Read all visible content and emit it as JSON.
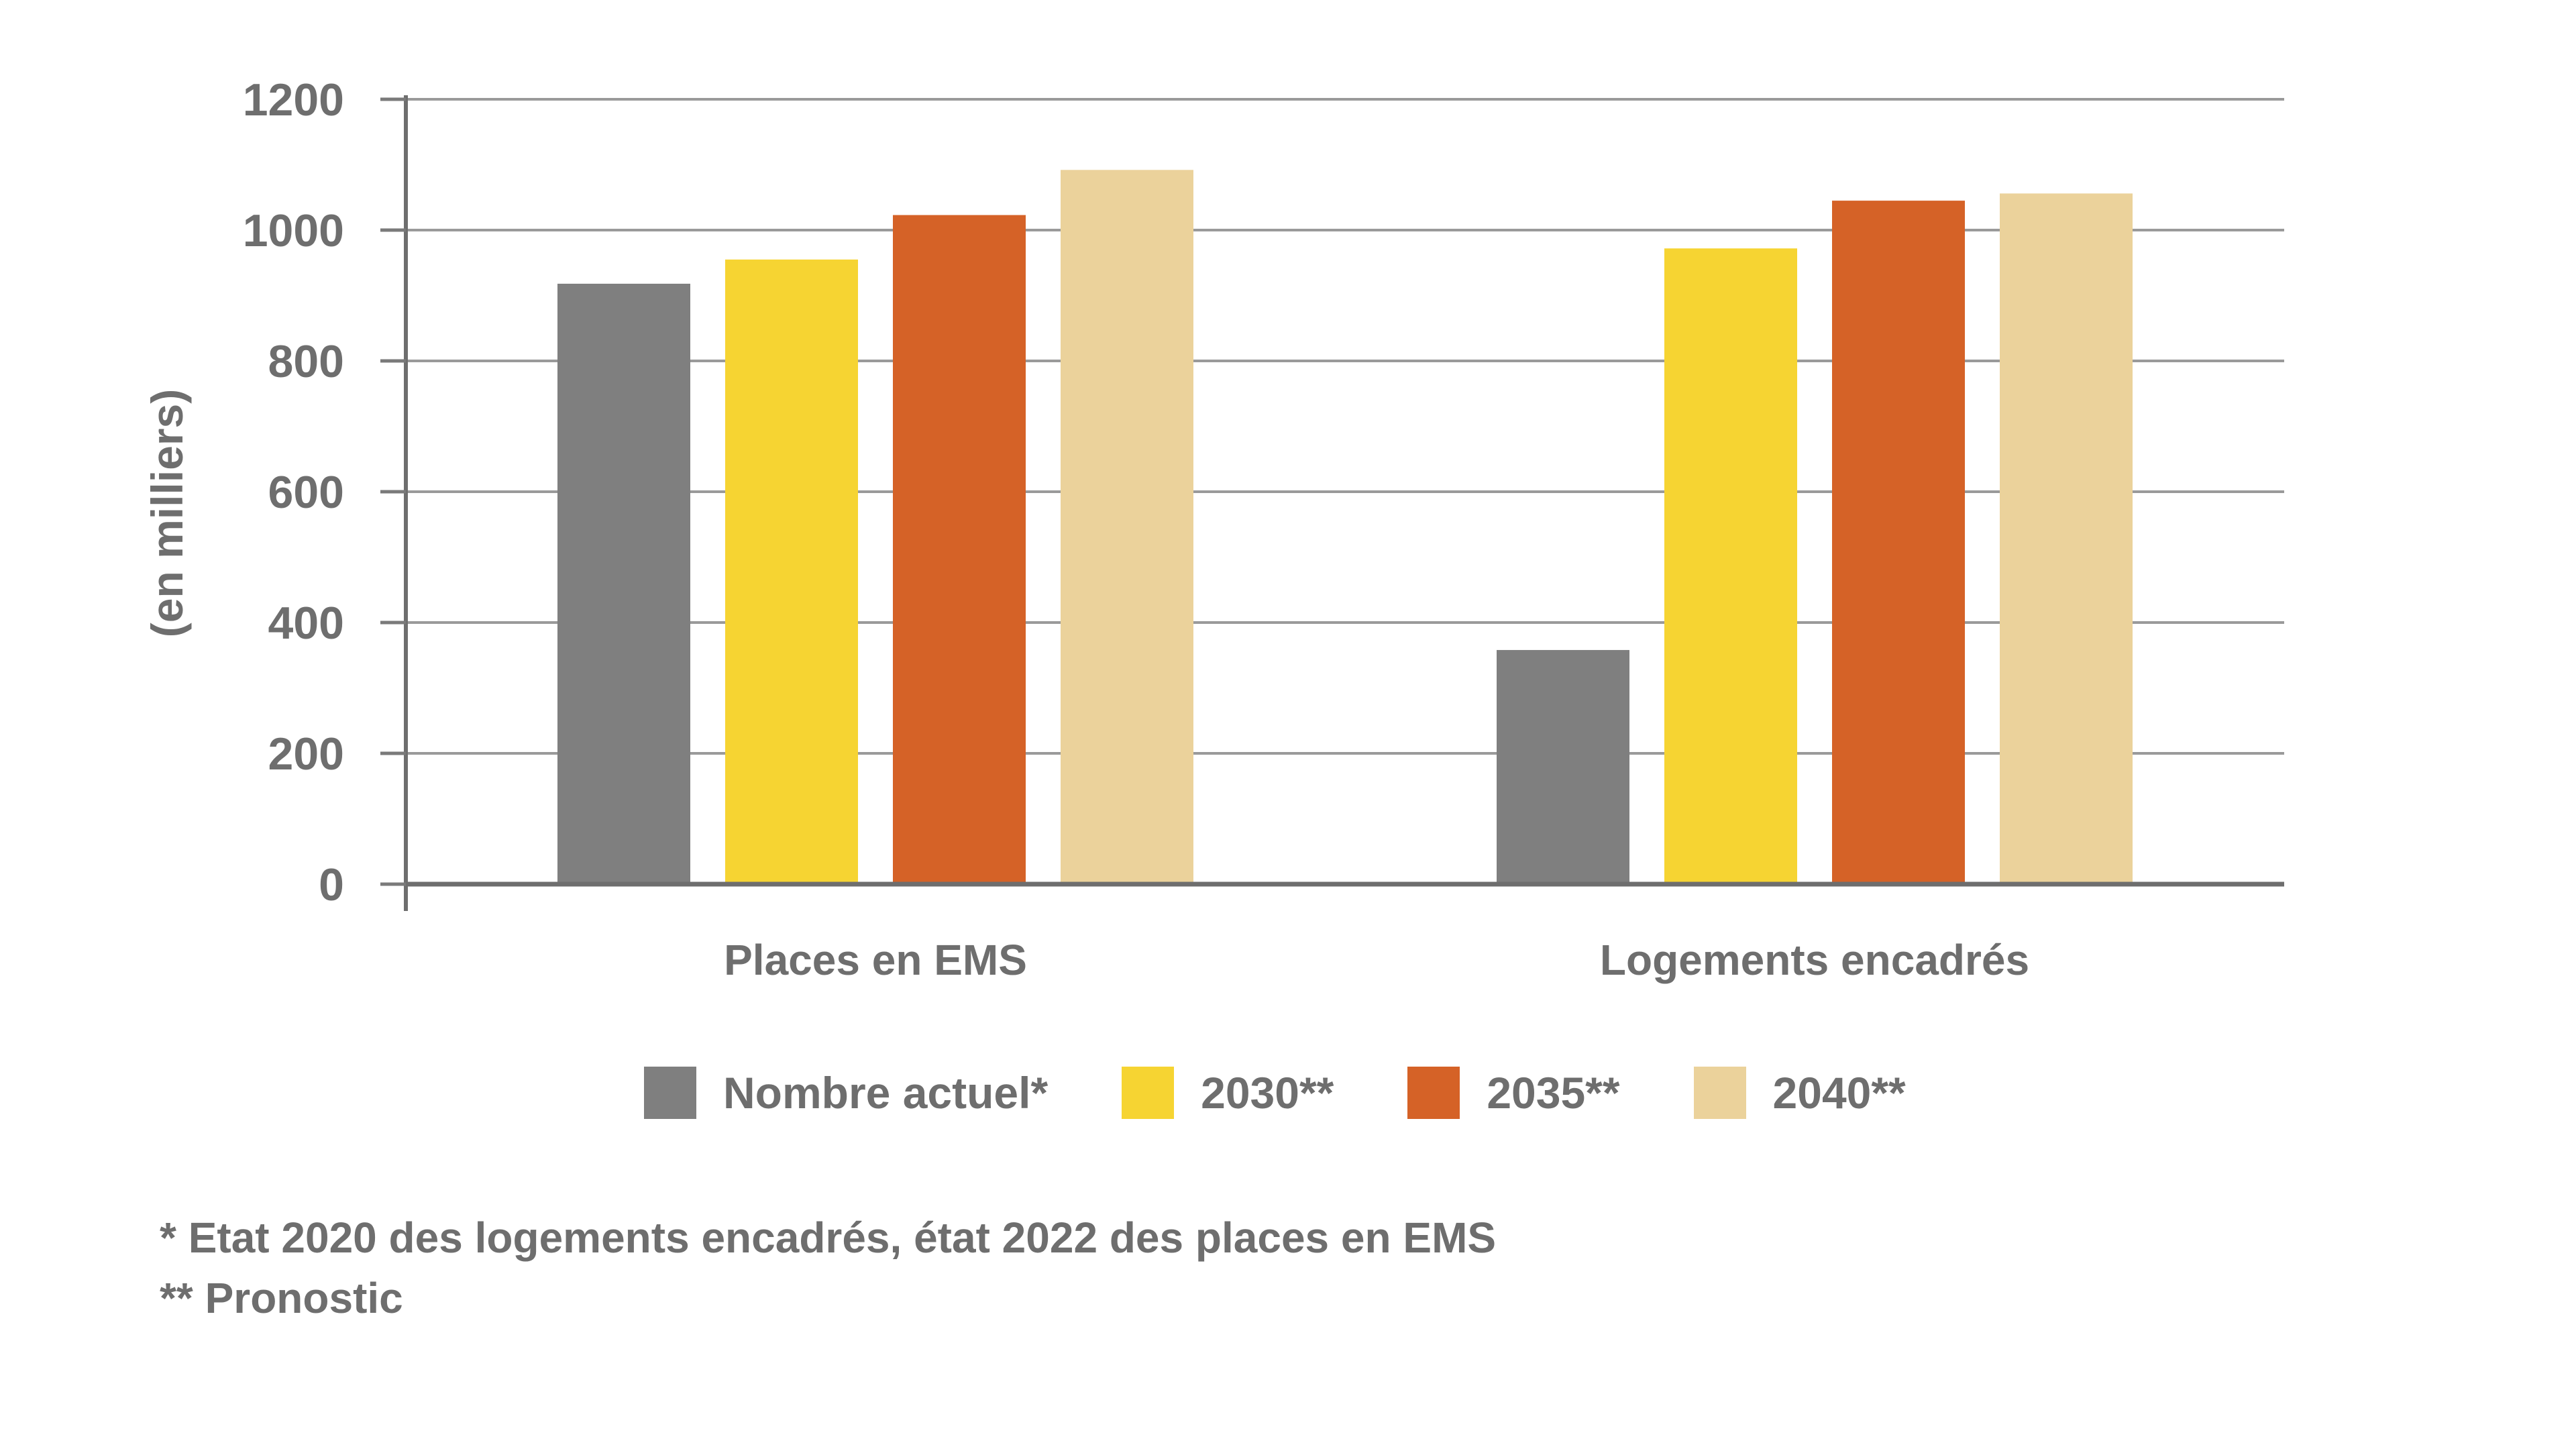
{
  "chart_data": {
    "type": "bar",
    "categories": [
      "Places en EMS",
      "Logements encadrés"
    ],
    "series": [
      {
        "name": "Nombre actuel*",
        "values": [
          918,
          358
        ],
        "color": "#7f7f7f"
      },
      {
        "name": "2030**",
        "values": [
          955,
          972
        ],
        "color": "#f6d432"
      },
      {
        "name": "2035**",
        "values": [
          1023,
          1045
        ],
        "color": "#d56227"
      },
      {
        "name": "2040**",
        "values": [
          1092,
          1056
        ],
        "color": "#ebd29b"
      }
    ],
    "ylabel": "(en milliers)",
    "ylim": [
      0,
      1200
    ],
    "yticks": [
      0,
      200,
      400,
      600,
      800,
      1000,
      1200
    ],
    "grid": true,
    "legend_placement": "bottom"
  },
  "footnotes": [
    "* Etat 2020 des logements encadrés, état 2022 des places en EMS",
    "** Pronostic"
  ]
}
